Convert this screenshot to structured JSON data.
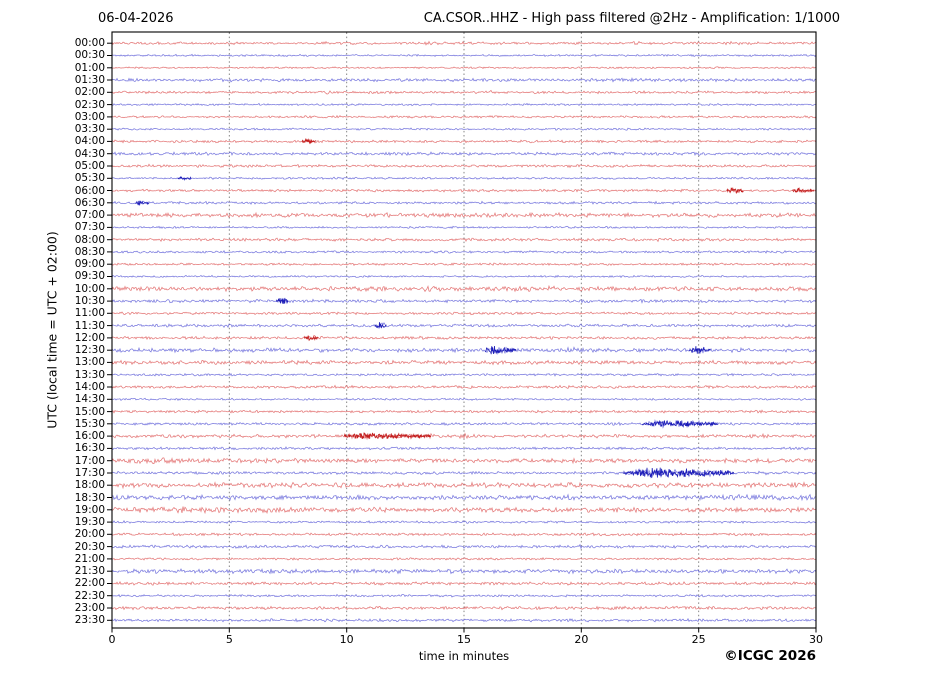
{
  "header": {
    "date": "06-04-2026",
    "title": "CA.CSOR..HHZ - High pass filtered @2Hz - Amplification: 1/1000"
  },
  "footer": {
    "xlabel": "time in minutes",
    "copyright": "©ICGC 2026"
  },
  "chart_data": {
    "type": "helicorder-dayplot",
    "title": "CA.CSOR..HHZ - High pass filtered @2Hz - Amplification: 1/1000",
    "date": "06-04-2026",
    "xlabel": "time in minutes",
    "ylabel": "UTC (local time = UTC + 02:00)",
    "x_ticks": [
      0,
      5,
      10,
      15,
      20,
      25,
      30
    ],
    "x_range": [
      0,
      30
    ],
    "minutes_per_line": 30,
    "grid": "vertical-dotted-5min",
    "legend": "none",
    "colors": {
      "trace_red": "#dd5252",
      "trace_blue": "#5353d5",
      "event_red": "#c01414",
      "event_blue": "#1414b4",
      "grid_line": "#787878",
      "frame": "#000000",
      "background": "#ffffff"
    },
    "rows": [
      {
        "t": "00:00",
        "c": "r",
        "a": 0.9,
        "e": [
          [
            8.8,
            9.6,
            1.5
          ],
          [
            13.2,
            13.8,
            1.5
          ],
          [
            21.5,
            23.0,
            1.5
          ],
          [
            26.0,
            27.5,
            1.4
          ]
        ]
      },
      {
        "t": "00:30",
        "c": "b",
        "a": 0.7,
        "e": [
          [
            5.0,
            6.5,
            1.4
          ]
        ]
      },
      {
        "t": "01:00",
        "c": "r",
        "a": 0.6,
        "e": []
      },
      {
        "t": "01:30",
        "c": "b",
        "a": 1.1,
        "e": []
      },
      {
        "t": "02:00",
        "c": "r",
        "a": 0.9,
        "e": [
          [
            2.7,
            3.4,
            1.5
          ],
          [
            8.9,
            9.5,
            1.6
          ],
          [
            16.0,
            16.4,
            1.5
          ]
        ]
      },
      {
        "t": "02:30",
        "c": "b",
        "a": 0.7,
        "e": []
      },
      {
        "t": "03:00",
        "c": "r",
        "a": 0.8,
        "e": []
      },
      {
        "t": "03:30",
        "c": "b",
        "a": 0.7,
        "e": []
      },
      {
        "t": "04:00",
        "c": "r",
        "a": 0.9,
        "e": [
          [
            8.1,
            8.7,
            2.3
          ]
        ]
      },
      {
        "t": "04:30",
        "c": "b",
        "a": 1.1,
        "e": []
      },
      {
        "t": "05:00",
        "c": "r",
        "a": 0.9,
        "e": [
          [
            1.2,
            2.2,
            1.4
          ]
        ]
      },
      {
        "t": "05:30",
        "c": "b",
        "a": 0.7,
        "e": [
          [
            2.8,
            3.4,
            2.1
          ]
        ]
      },
      {
        "t": "06:00",
        "c": "r",
        "a": 0.9,
        "e": [
          [
            26.2,
            26.9,
            2.6
          ],
          [
            29.0,
            29.9,
            2.2
          ]
        ]
      },
      {
        "t": "06:30",
        "c": "b",
        "a": 0.9,
        "e": [
          [
            1.0,
            1.6,
            2.0
          ]
        ]
      },
      {
        "t": "07:00",
        "c": "r",
        "a": 1.5,
        "e": []
      },
      {
        "t": "07:30",
        "c": "b",
        "a": 0.7,
        "e": [
          [
            21.6,
            22.4,
            1.6
          ]
        ]
      },
      {
        "t": "08:00",
        "c": "r",
        "a": 1.0,
        "e": [
          [
            15.0,
            16.0,
            1.3
          ],
          [
            22.0,
            23.5,
            1.3
          ]
        ]
      },
      {
        "t": "08:30",
        "c": "b",
        "a": 0.8,
        "e": []
      },
      {
        "t": "09:00",
        "c": "r",
        "a": 0.8,
        "e": []
      },
      {
        "t": "09:30",
        "c": "b",
        "a": 0.7,
        "e": []
      },
      {
        "t": "10:00",
        "c": "r",
        "a": 1.6,
        "e": [
          [
            10.0,
            14.0,
            1.25
          ],
          [
            17.0,
            19.0,
            1.2
          ]
        ]
      },
      {
        "t": "10:30",
        "c": "b",
        "a": 1.1,
        "e": [
          [
            7.0,
            7.5,
            2.7
          ]
        ]
      },
      {
        "t": "11:00",
        "c": "r",
        "a": 0.9,
        "e": []
      },
      {
        "t": "11:30",
        "c": "b",
        "a": 1.0,
        "e": [
          [
            4.5,
            5.2,
            1.5
          ],
          [
            11.2,
            11.7,
            2.7
          ],
          [
            27.0,
            27.6,
            1.5
          ]
        ]
      },
      {
        "t": "12:00",
        "c": "r",
        "a": 1.0,
        "e": [
          [
            8.2,
            8.8,
            2.2
          ],
          [
            12.5,
            13.3,
            1.4
          ]
        ]
      },
      {
        "t": "12:30",
        "c": "b",
        "a": 1.4,
        "e": [
          [
            15.9,
            17.2,
            2.1
          ],
          [
            19.3,
            19.9,
            1.7
          ],
          [
            24.6,
            25.5,
            1.9
          ]
        ]
      },
      {
        "t": "13:00",
        "c": "r",
        "a": 1.4,
        "e": []
      },
      {
        "t": "13:30",
        "c": "b",
        "a": 0.8,
        "e": []
      },
      {
        "t": "14:00",
        "c": "r",
        "a": 1.0,
        "e": []
      },
      {
        "t": "14:30",
        "c": "b",
        "a": 0.7,
        "e": []
      },
      {
        "t": "15:00",
        "c": "r",
        "a": 0.9,
        "e": []
      },
      {
        "t": "15:30",
        "c": "b",
        "a": 0.9,
        "e": [
          [
            22.6,
            25.8,
            2.9
          ]
        ]
      },
      {
        "t": "16:00",
        "c": "r",
        "a": 1.2,
        "e": [
          [
            9.9,
            13.6,
            2.0
          ],
          [
            14.7,
            15.6,
            1.6
          ],
          [
            27.4,
            28.0,
            1.5
          ]
        ]
      },
      {
        "t": "16:30",
        "c": "b",
        "a": 0.9,
        "e": [
          [
            4.2,
            4.8,
            1.7
          ]
        ]
      },
      {
        "t": "17:00",
        "c": "r",
        "a": 1.5,
        "e": [
          [
            0.0,
            8.0,
            1.4
          ]
        ]
      },
      {
        "t": "17:30",
        "c": "b",
        "a": 1.0,
        "e": [
          [
            21.8,
            26.5,
            3.6
          ],
          [
            27.5,
            28.1,
            1.7
          ]
        ]
      },
      {
        "t": "18:00",
        "c": "r",
        "a": 1.8,
        "e": []
      },
      {
        "t": "18:30",
        "c": "b",
        "a": 1.6,
        "e": [
          [
            10.2,
            10.9,
            1.7
          ],
          [
            19.1,
            19.5,
            1.7
          ],
          [
            25.0,
            30.0,
            1.4
          ]
        ]
      },
      {
        "t": "19:00",
        "c": "r",
        "a": 1.7,
        "e": [
          [
            0.0,
            12.5,
            1.3
          ]
        ]
      },
      {
        "t": "19:30",
        "c": "b",
        "a": 0.8,
        "e": []
      },
      {
        "t": "20:00",
        "c": "r",
        "a": 0.9,
        "e": []
      },
      {
        "t": "20:30",
        "c": "b",
        "a": 1.0,
        "e": [
          [
            19.5,
            20.3,
            1.5
          ]
        ]
      },
      {
        "t": "21:00",
        "c": "r",
        "a": 0.8,
        "e": []
      },
      {
        "t": "21:30",
        "c": "b",
        "a": 1.5,
        "e": []
      },
      {
        "t": "22:00",
        "c": "r",
        "a": 1.1,
        "e": []
      },
      {
        "t": "22:30",
        "c": "b",
        "a": 0.8,
        "e": []
      },
      {
        "t": "23:00",
        "c": "r",
        "a": 1.1,
        "e": []
      },
      {
        "t": "23:30",
        "c": "b",
        "a": 1.0,
        "e": []
      }
    ]
  }
}
